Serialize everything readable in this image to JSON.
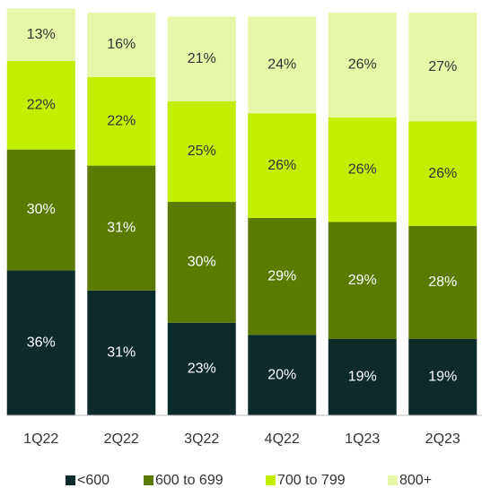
{
  "chart_data": {
    "type": "stacked-bar",
    "categories": [
      "1Q22",
      "2Q22",
      "3Q22",
      "4Q22",
      "1Q23",
      "2Q23"
    ],
    "ylim": [
      0,
      100
    ],
    "legend": "bottom",
    "series": [
      {
        "name": "<600",
        "color": "#0d2b2b",
        "label_color": "#ffffff",
        "values": [
          36,
          31,
          23,
          20,
          19,
          19
        ],
        "value_labels": [
          "36%",
          "31%",
          "23%",
          "20%",
          "19%",
          "19%"
        ]
      },
      {
        "name": "600 to 699",
        "color": "#5b7a00",
        "label_color": "#ffffff",
        "values": [
          30,
          31,
          30,
          29,
          29,
          28
        ],
        "value_labels": [
          "30%",
          "31%",
          "30%",
          "29%",
          "29%",
          "28%"
        ]
      },
      {
        "name": "700 to 799",
        "color": "#c2ee00",
        "label_color": "#333333",
        "values": [
          22,
          22,
          25,
          26,
          26,
          26
        ],
        "value_labels": [
          "22%",
          "22%",
          "25%",
          "26%",
          "26%",
          "26%"
        ]
      },
      {
        "name": "800+",
        "color": "#e6f8a8",
        "label_color": "#333333",
        "values": [
          13,
          16,
          21,
          24,
          26,
          27
        ],
        "value_labels": [
          "13%",
          "16%",
          "21%",
          "24%",
          "26%",
          "27%"
        ]
      }
    ]
  }
}
